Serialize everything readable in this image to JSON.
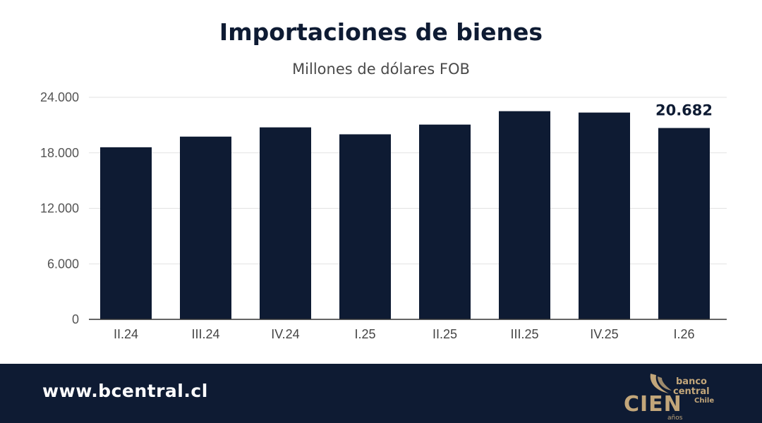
{
  "chart_data": {
    "type": "bar",
    "title": "Importaciones de bienes",
    "subtitle": "Millones de dólares FOB",
    "categories": [
      "II.24",
      "III.24",
      "IV.24",
      "I.25",
      "II.25",
      "III.25",
      "IV.25",
      "I.26"
    ],
    "values": [
      18600,
      19750,
      20750,
      20000,
      21050,
      22500,
      22350,
      20682
    ],
    "data_labels": [
      "",
      "",
      "",
      "",
      "",
      "",
      "",
      "20.682"
    ],
    "y_ticks": [
      0,
      6000,
      12000,
      18000,
      24000
    ],
    "y_tick_labels": [
      "0",
      "6.000",
      "12.000",
      "18.000",
      "24.000"
    ],
    "ylim": [
      0,
      24000
    ],
    "grid": true,
    "bar_color": "#0e1b33"
  },
  "footer": {
    "url": "www.bcentral.cl",
    "logo": {
      "cien": "CIEN",
      "anos": "años",
      "banco": "banco",
      "central": "central",
      "chile": "Chile",
      "color": "#c2a67a"
    },
    "background": "#0e1b33"
  }
}
